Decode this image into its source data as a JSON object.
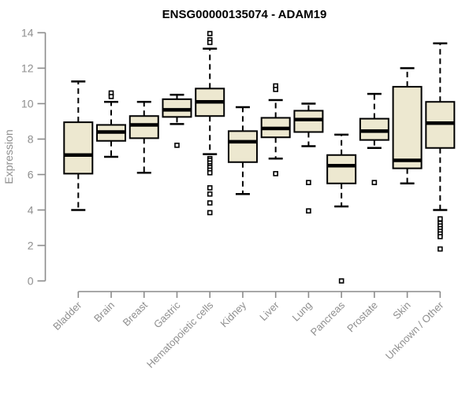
{
  "chart_data": {
    "type": "boxplot",
    "title": "ENSG00000135074 - ADAM19",
    "ylabel": "Expression",
    "xlabel": "",
    "ylim": [
      0,
      14
    ],
    "yticks": [
      0,
      2,
      4,
      6,
      8,
      10,
      12,
      14
    ],
    "grid": false,
    "legend": "none",
    "categories": [
      "Bladder",
      "Brain",
      "Breast",
      "Gastric",
      "Hematopoietic cells",
      "Kidney",
      "Liver",
      "Lung",
      "Pancreas",
      "Prostate",
      "Skin",
      "Unknown / Other"
    ],
    "series": [
      {
        "name": "Bladder",
        "whisker_low": 4.0,
        "q1": 6.05,
        "median": 7.1,
        "q3": 8.95,
        "whisker_high": 11.25,
        "outliers": []
      },
      {
        "name": "Brain",
        "whisker_low": 7.0,
        "q1": 7.9,
        "median": 8.4,
        "q3": 8.8,
        "whisker_high": 10.1,
        "outliers": [
          10.6,
          10.4
        ]
      },
      {
        "name": "Breast",
        "whisker_low": 6.1,
        "q1": 8.05,
        "median": 8.8,
        "q3": 9.3,
        "whisker_high": 10.1,
        "outliers": []
      },
      {
        "name": "Gastric",
        "whisker_low": 8.85,
        "q1": 9.25,
        "median": 9.65,
        "q3": 10.25,
        "whisker_high": 10.5,
        "outliers": [
          7.65
        ]
      },
      {
        "name": "Hematopoietic cells",
        "whisker_low": 7.15,
        "q1": 9.3,
        "median": 10.1,
        "q3": 10.85,
        "whisker_high": 13.1,
        "outliers": [
          13.95,
          13.6,
          13.45,
          6.9,
          6.8,
          6.65,
          6.5,
          6.4,
          6.25,
          6.1,
          5.25,
          4.9,
          4.4,
          3.85
        ]
      },
      {
        "name": "Kidney",
        "whisker_low": 4.9,
        "q1": 6.7,
        "median": 7.85,
        "q3": 8.45,
        "whisker_high": 9.8,
        "outliers": []
      },
      {
        "name": "Liver",
        "whisker_low": 6.9,
        "q1": 8.1,
        "median": 8.6,
        "q3": 9.2,
        "whisker_high": 10.2,
        "outliers": [
          11.0,
          10.8,
          6.05
        ]
      },
      {
        "name": "Lung",
        "whisker_low": 7.6,
        "q1": 8.4,
        "median": 9.1,
        "q3": 9.6,
        "whisker_high": 10.0,
        "outliers": [
          5.55,
          3.95
        ]
      },
      {
        "name": "Pancreas",
        "whisker_low": 4.2,
        "q1": 5.5,
        "median": 6.5,
        "q3": 7.1,
        "whisker_high": 8.25,
        "outliers": [
          0.0
        ]
      },
      {
        "name": "Prostate",
        "whisker_low": 7.5,
        "q1": 7.95,
        "median": 8.45,
        "q3": 9.15,
        "whisker_high": 10.55,
        "outliers": [
          5.55
        ]
      },
      {
        "name": "Skin",
        "whisker_low": 5.5,
        "q1": 6.35,
        "median": 6.8,
        "q3": 10.95,
        "whisker_high": 12.0,
        "outliers": []
      },
      {
        "name": "Unknown / Other",
        "whisker_low": 4.0,
        "q1": 7.5,
        "median": 8.9,
        "q3": 10.1,
        "whisker_high": 13.4,
        "outliers": [
          3.5,
          3.25,
          3.1,
          2.95,
          2.8,
          2.65,
          2.5,
          1.8
        ]
      }
    ],
    "style": {
      "box_fill": "#ede8d0",
      "box_border": "#000000",
      "median_color": "#000000",
      "whisker_color": "#000000",
      "outlier_fill": "#ffffff",
      "outlier_border": "#000000",
      "axis_line_color": "#8c8c8c",
      "axis_text_color": "#8f8f8f",
      "title_color": "#000000",
      "background": "#ffffff"
    }
  }
}
